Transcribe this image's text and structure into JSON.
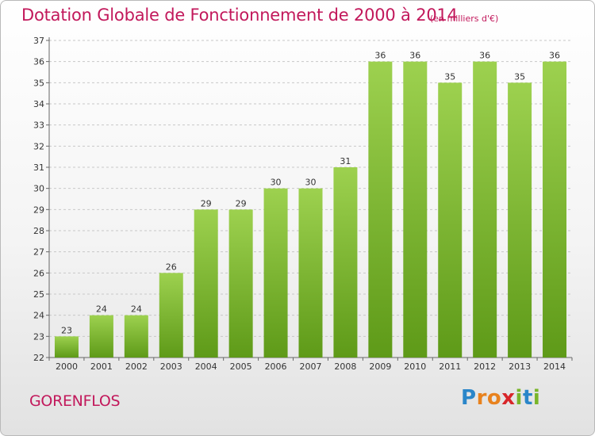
{
  "title": "Dotation Globale de Fonctionnement de 2000 à 2014",
  "subtitle": "(en milliers d'€)",
  "city": "GORENFLOS",
  "logo": {
    "letters": [
      "P",
      "r",
      "o",
      "x",
      "i",
      "t",
      "i"
    ],
    "colors": [
      "#2a86c9",
      "#e8821e",
      "#e8821e",
      "#d8262a",
      "#79b52a",
      "#2a86c9",
      "#79b52a"
    ]
  },
  "colors": {
    "bar_top": "#9dd14f",
    "bar_bottom": "#5e9a18",
    "title": "#c2185b"
  },
  "chart_data": {
    "type": "bar",
    "title": "Dotation Globale de Fonctionnement de 2000 à 2014",
    "subtitle": "(en milliers d'€)",
    "xlabel": "",
    "ylabel": "",
    "categories": [
      "2000",
      "2001",
      "2002",
      "2003",
      "2004",
      "2005",
      "2006",
      "2007",
      "2008",
      "2009",
      "2010",
      "2011",
      "2012",
      "2013",
      "2014"
    ],
    "values": [
      23,
      24,
      24,
      26,
      29,
      29,
      30,
      30,
      31,
      36,
      36,
      35,
      36,
      35,
      36
    ],
    "ylim": [
      22,
      37
    ],
    "yticks": [
      22,
      23,
      24,
      25,
      26,
      27,
      28,
      29,
      30,
      31,
      32,
      33,
      34,
      35,
      36,
      37
    ],
    "grid": true,
    "legend": "none"
  }
}
